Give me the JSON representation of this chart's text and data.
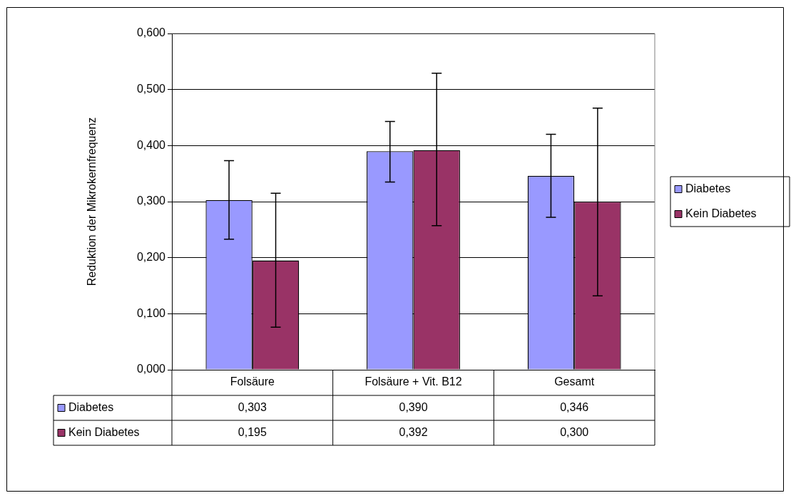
{
  "chart_data": {
    "type": "bar",
    "ylabel": "Reduktion der Mikrokernfrequenz",
    "categories": [
      "Folsäure",
      "Folsäure + Vit. B12",
      "Gesamt"
    ],
    "series": [
      {
        "name": "Diabetes",
        "color": "#9999ff",
        "values": [
          0.303,
          0.39,
          0.346
        ],
        "errors": [
          [
            0.233,
            0.373
          ],
          [
            0.335,
            0.443
          ],
          [
            0.272,
            0.42
          ]
        ],
        "value_labels": [
          "0,303",
          "0,390",
          "0,346"
        ]
      },
      {
        "name": "Kein Diabetes",
        "color": "#993366",
        "values": [
          0.195,
          0.392,
          0.3
        ],
        "errors": [
          [
            0.076,
            0.315
          ],
          [
            0.257,
            0.529
          ],
          [
            0.132,
            0.467
          ]
        ],
        "value_labels": [
          "0,195",
          "0,392",
          "0,300"
        ]
      }
    ],
    "ylim": [
      0,
      0.6
    ],
    "yticks": [
      {
        "value": 0,
        "label": "0,000"
      },
      {
        "value": 0.1,
        "label": "0,100"
      },
      {
        "value": 0.2,
        "label": "0,200"
      },
      {
        "value": 0.3,
        "label": "0,300"
      },
      {
        "value": 0.4,
        "label": "0,400"
      },
      {
        "value": 0.5,
        "label": "0,500"
      },
      {
        "value": 0.6,
        "label": "0,600"
      }
    ],
    "grid": "y",
    "legend": "right"
  }
}
